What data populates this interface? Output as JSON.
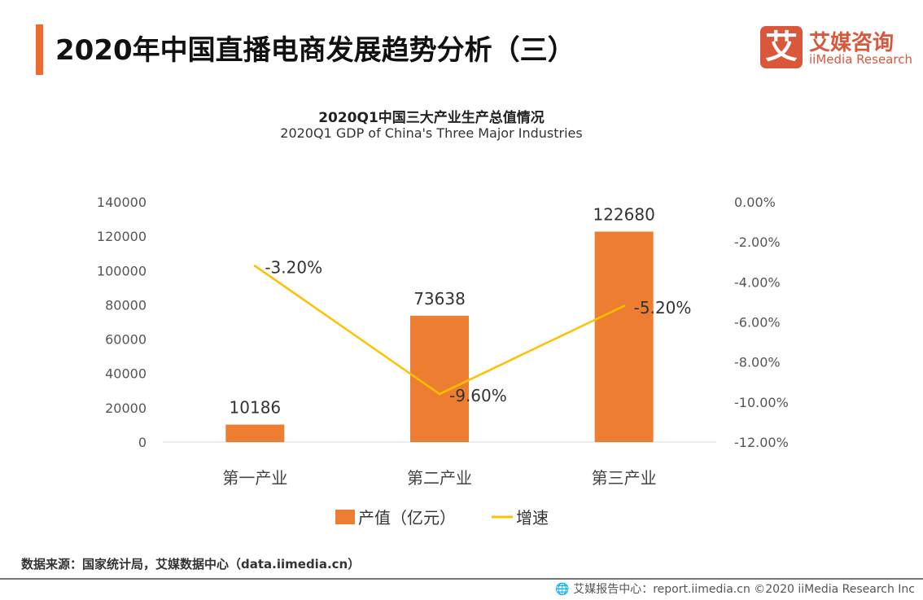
{
  "header": {
    "title": "2020年中国直播电商发展趋势分析（三）"
  },
  "logo": {
    "mark": "艾",
    "name_cn": "艾媒咨询",
    "name_en": "iiMedia Research"
  },
  "chart_data": {
    "type": "bar+line",
    "title": "2020Q1中国三大产业生产总值情况",
    "subtitle": "2020Q1 GDP of China's Three Major Industries",
    "categories": [
      "第一产业",
      "第二产业",
      "第三产业"
    ],
    "series": [
      {
        "name": "产值（亿元）",
        "type": "bar",
        "axis": "left",
        "color": "#ed7d31",
        "values": [
          10186,
          73638,
          122680
        ],
        "labels": [
          "10186",
          "73638",
          "122680"
        ]
      },
      {
        "name": "增速",
        "type": "line",
        "axis": "right",
        "color": "#ffc000",
        "values": [
          -3.2,
          -9.6,
          -5.2
        ],
        "labels": [
          "-3.20%",
          "-9.60%",
          "-5.20%"
        ]
      }
    ],
    "left_axis": {
      "range": [
        0,
        140000
      ],
      "ticks": [
        "0",
        "20000",
        "40000",
        "60000",
        "80000",
        "100000",
        "120000",
        "140000"
      ]
    },
    "right_axis": {
      "range": [
        -12,
        0
      ],
      "ticks": [
        "-12.00%",
        "-10.00%",
        "-8.00%",
        "-6.00%",
        "-4.00%",
        "-2.00%",
        "0.00%"
      ]
    },
    "grid": false,
    "legend_position": "bottom"
  },
  "source": "数据来源：国家统计局，艾媒数据中心（data.iimedia.cn）",
  "footer": "艾媒报告中心：report.iimedia.cn   ©2020  iiMedia Research  Inc"
}
